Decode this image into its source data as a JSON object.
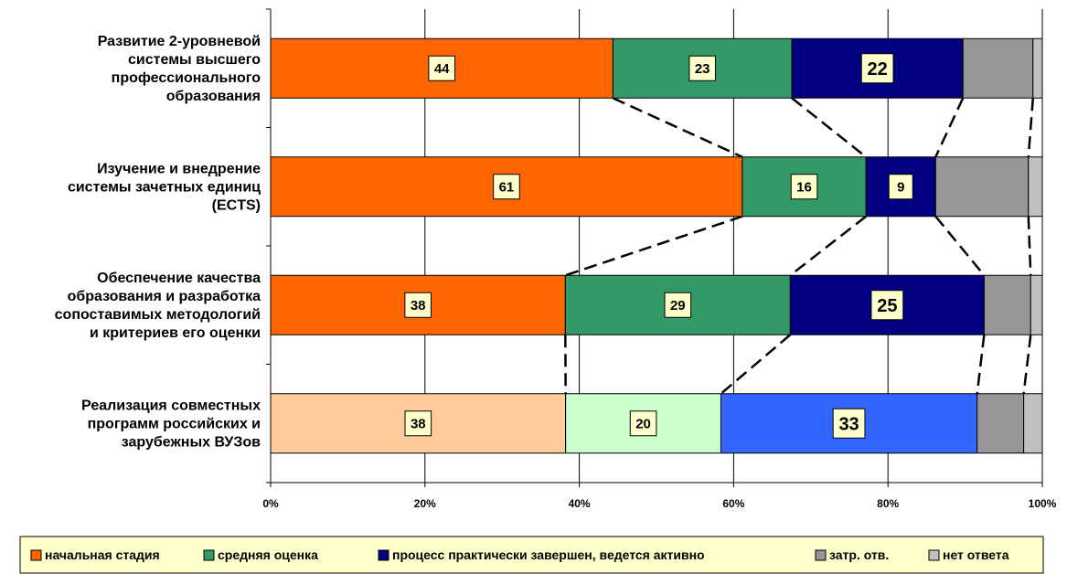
{
  "chart_data": {
    "type": "bar",
    "orientation": "horizontal",
    "stacked": "percent",
    "categories": [
      [
        "Развитие 2-уровневой",
        "системы высшего",
        "профессионального",
        "образования"
      ],
      [
        "Изучение и внедрение",
        "системы зачетных единиц",
        "(ECTS)"
      ],
      [
        "Обеспечение качества",
        "образования и разработка",
        "сопоставимых методологий",
        "и критериев его оценки"
      ],
      [
        "Реализация совместных",
        "программ российских и",
        "зарубежных ВУЗов"
      ]
    ],
    "series": [
      {
        "name": "начальная стадия",
        "values": [
          44,
          61,
          38,
          38
        ],
        "labeled": true
      },
      {
        "name": "средняя оценка",
        "values": [
          23,
          16,
          29,
          20
        ],
        "labeled": true
      },
      {
        "name": "процесс практически завершен, ведется активно",
        "values": [
          22,
          9,
          25,
          33
        ],
        "labeled": true
      },
      {
        "name": "затр. отв.",
        "values": [
          9,
          12,
          6,
          6
        ],
        "labeled": false
      },
      {
        "name": "нет ответа",
        "values": [
          1.2,
          1.8,
          1.5,
          2.4
        ],
        "labeled": false
      }
    ],
    "colors": {
      "default": [
        "#FF6600",
        "#339966",
        "#000080",
        "#969696",
        "#C0C0C0"
      ],
      "last_bar": [
        "#FFCC99",
        "#CCFFCC",
        "#3366FF",
        "#969696",
        "#C0C0C0"
      ]
    },
    "xlim": [
      0,
      100
    ],
    "x_ticks": [
      "0%",
      "20%",
      "40%",
      "60%",
      "80%",
      "100%"
    ],
    "grid": "vertical",
    "series_lines": "dashed",
    "legend": "bottom",
    "label_box_color": "#FFFFCC"
  }
}
